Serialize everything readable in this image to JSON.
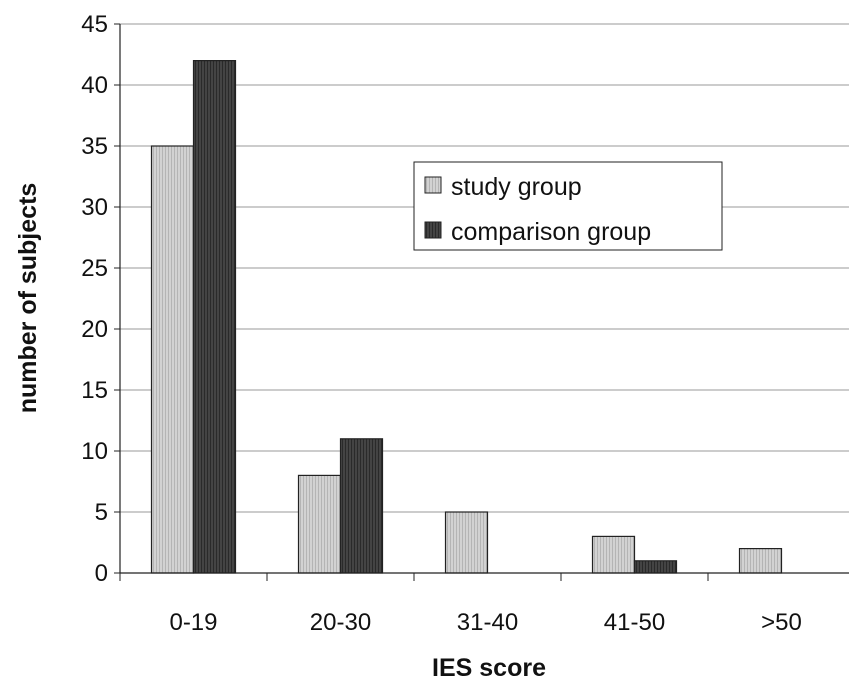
{
  "chart_data": {
    "type": "bar",
    "title": "",
    "xlabel": "IES score",
    "ylabel": "number of subjects",
    "categories": [
      "0-19",
      "20-30",
      "31-40",
      "41-50",
      ">50"
    ],
    "series": [
      {
        "name": "study group",
        "values": [
          35,
          8,
          5,
          3,
          2
        ],
        "color": "#c8c8c8"
      },
      {
        "name": "comparison group",
        "values": [
          42,
          11,
          0,
          1,
          0
        ],
        "color": "#3e3e3e"
      }
    ],
    "ylim": [
      0,
      45
    ],
    "yticks": [
      0,
      5,
      10,
      15,
      20,
      25,
      30,
      35,
      40,
      45
    ],
    "grid": true,
    "legend_position": "top-right"
  }
}
